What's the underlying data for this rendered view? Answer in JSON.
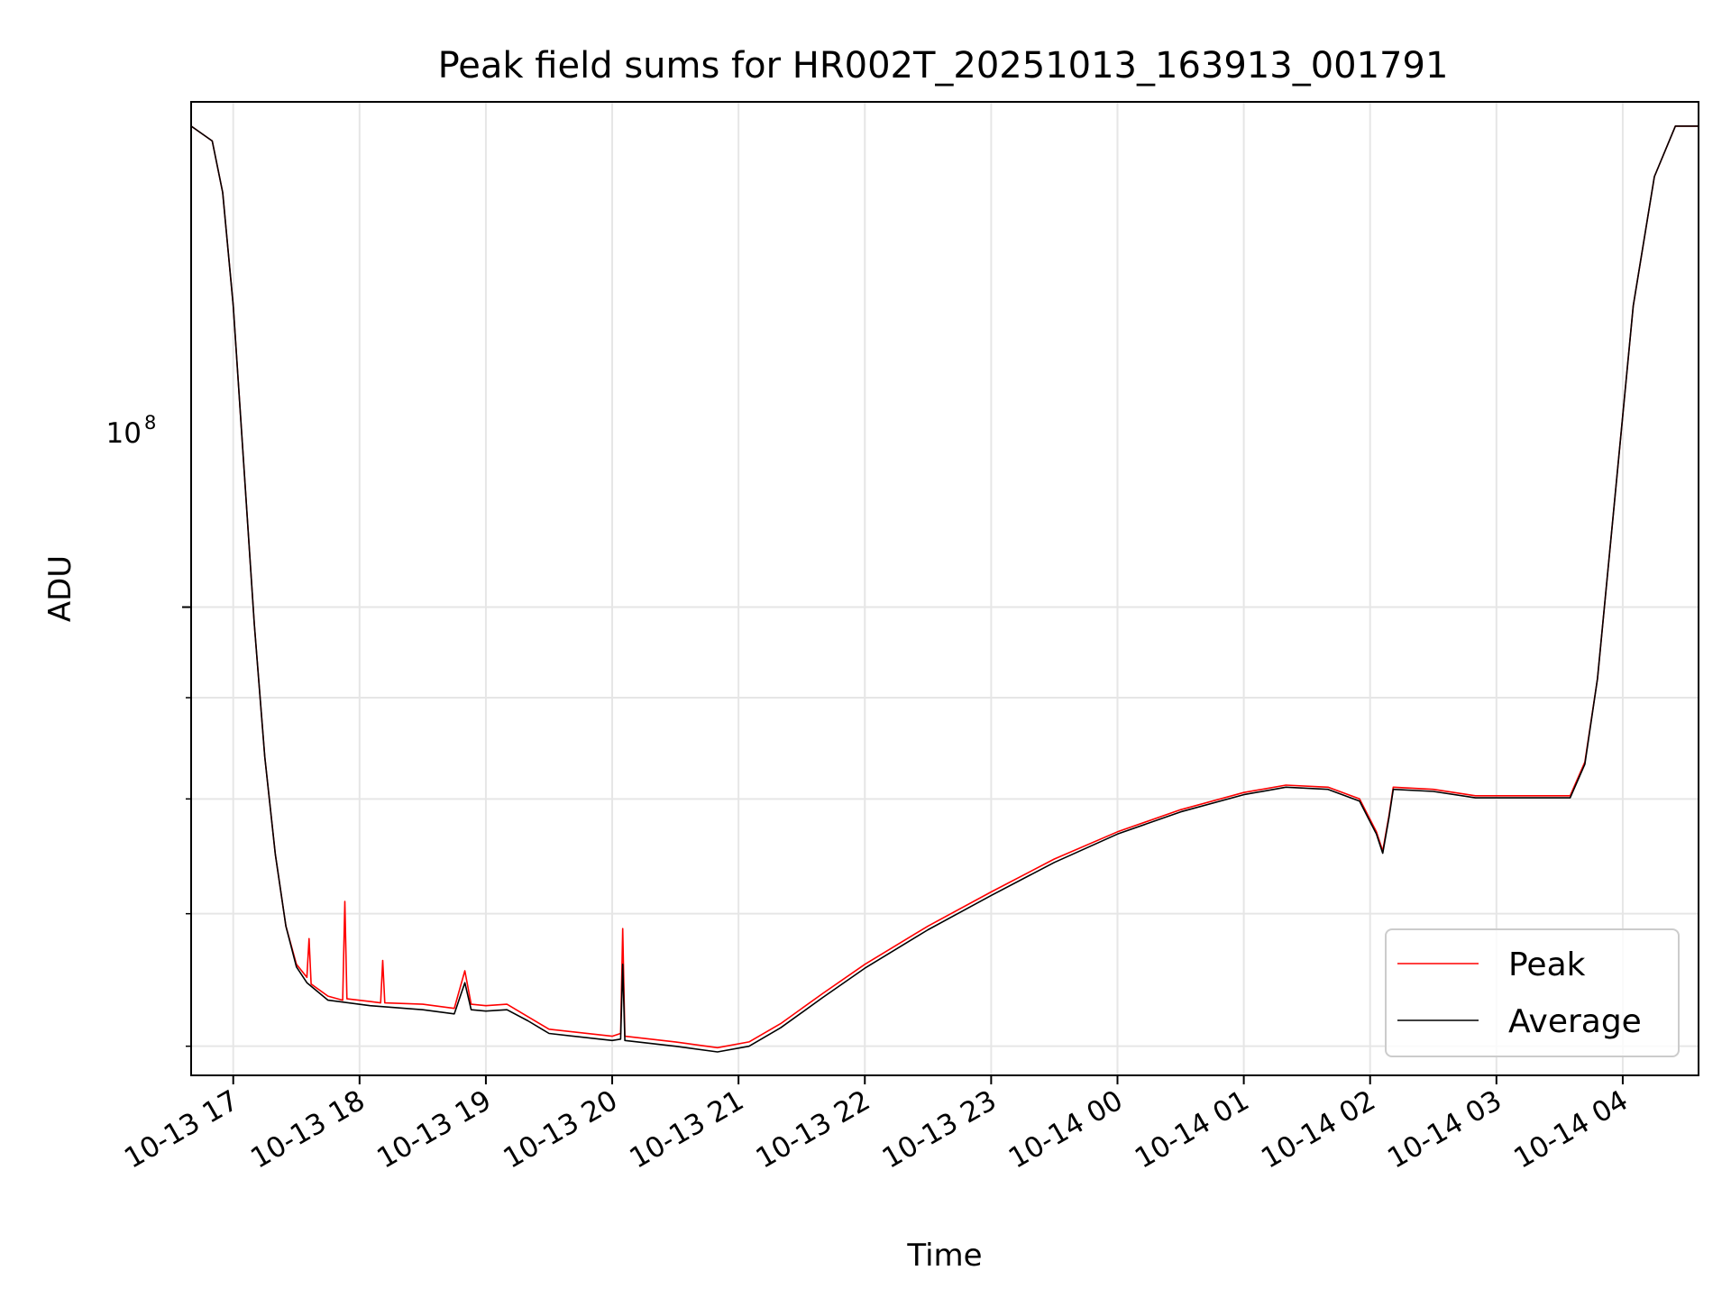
{
  "chart_data": {
    "type": "line",
    "title": "Peak field sums for HR002T_20251013_163913_001791",
    "xlabel": "Time",
    "ylabel": "ADU",
    "yscale": "log",
    "grid": true,
    "legend": "lower-right",
    "x_tick_labels": [
      "10-13 17",
      "10-13 18",
      "10-13 19",
      "10-13 20",
      "10-13 21",
      "10-13 22",
      "10-13 23",
      "10-14 00",
      "10-14 01",
      "10-14 02",
      "10-14 03",
      "10-14 04"
    ],
    "y_tick_label": {
      "base": "10",
      "exponent": "8"
    },
    "xlim": [
      "2025-10-13 16:40",
      "2025-10-14 04:36"
    ],
    "ylim": [
      58000000,
      180000000
    ],
    "series": [
      {
        "name": "Peak",
        "color": "#ff0000",
        "points": [
          [
            "2025-10-13 16:40",
            175000000
          ],
          [
            "2025-10-13 16:50",
            172000000
          ],
          [
            "2025-10-13 16:55",
            162000000
          ],
          [
            "2025-10-13 17:00",
            142000000
          ],
          [
            "2025-10-13 17:05",
            118000000
          ],
          [
            "2025-10-13 17:10",
            98000000
          ],
          [
            "2025-10-13 17:15",
            84000000
          ],
          [
            "2025-10-13 17:20",
            75000000
          ],
          [
            "2025-10-13 17:25",
            69000000
          ],
          [
            "2025-10-13 17:30",
            66000000
          ],
          [
            "2025-10-13 17:35",
            65000000
          ],
          [
            "2025-10-13 17:36",
            68000000
          ],
          [
            "2025-10-13 17:37",
            64500000
          ],
          [
            "2025-10-13 17:45",
            63600000
          ],
          [
            "2025-10-13 17:52",
            63300000
          ],
          [
            "2025-10-13 17:53",
            71000000
          ],
          [
            "2025-10-13 17:54",
            63400000
          ],
          [
            "2025-10-13 18:05",
            63200000
          ],
          [
            "2025-10-13 18:10",
            63100000
          ],
          [
            "2025-10-13 18:11",
            66300000
          ],
          [
            "2025-10-13 18:12",
            63100000
          ],
          [
            "2025-10-13 18:30",
            63000000
          ],
          [
            "2025-10-13 18:45",
            62700000
          ],
          [
            "2025-10-13 18:50",
            65500000
          ],
          [
            "2025-10-13 18:53",
            63000000
          ],
          [
            "2025-10-13 19:00",
            62900000
          ],
          [
            "2025-10-13 19:10",
            63000000
          ],
          [
            "2025-10-13 19:20",
            62100000
          ],
          [
            "2025-10-13 19:30",
            61200000
          ],
          [
            "2025-10-13 20:00",
            60700000
          ],
          [
            "2025-10-13 20:04",
            60900000
          ],
          [
            "2025-10-13 20:05",
            68800000
          ],
          [
            "2025-10-13 20:06",
            60700000
          ],
          [
            "2025-10-13 20:30",
            60300000
          ],
          [
            "2025-10-13 20:50",
            59900000
          ],
          [
            "2025-10-13 21:05",
            60300000
          ],
          [
            "2025-10-13 21:20",
            61600000
          ],
          [
            "2025-10-13 21:40",
            63800000
          ],
          [
            "2025-10-13 22:00",
            66000000
          ],
          [
            "2025-10-13 22:30",
            69000000
          ],
          [
            "2025-10-13 23:00",
            71800000
          ],
          [
            "2025-10-13 23:30",
            74600000
          ],
          [
            "2025-10-14 00:00",
            77000000
          ],
          [
            "2025-10-14 00:30",
            79000000
          ],
          [
            "2025-10-14 01:00",
            80600000
          ],
          [
            "2025-10-14 01:20",
            81300000
          ],
          [
            "2025-10-14 01:40",
            81100000
          ],
          [
            "2025-10-14 01:55",
            80000000
          ],
          [
            "2025-10-14 02:03",
            77000000
          ],
          [
            "2025-10-14 02:06",
            75300000
          ],
          [
            "2025-10-14 02:09",
            78500000
          ],
          [
            "2025-10-14 02:11",
            81100000
          ],
          [
            "2025-10-14 02:30",
            80900000
          ],
          [
            "2025-10-14 02:50",
            80300000
          ],
          [
            "2025-10-14 03:10",
            80300000
          ],
          [
            "2025-10-14 03:35",
            80300000
          ],
          [
            "2025-10-14 03:42",
            83500000
          ],
          [
            "2025-10-14 03:48",
            92000000
          ],
          [
            "2025-10-14 03:55",
            110000000
          ],
          [
            "2025-10-14 04:05",
            142000000
          ],
          [
            "2025-10-14 04:15",
            165000000
          ],
          [
            "2025-10-14 04:25",
            175000000
          ],
          [
            "2025-10-14 04:36",
            175000000
          ]
        ]
      },
      {
        "name": "Average",
        "color": "#000000",
        "points": [
          [
            "2025-10-13 16:40",
            175000000
          ],
          [
            "2025-10-13 16:50",
            172000000
          ],
          [
            "2025-10-13 16:55",
            162000000
          ],
          [
            "2025-10-13 17:00",
            142000000
          ],
          [
            "2025-10-13 17:05",
            118000000
          ],
          [
            "2025-10-13 17:10",
            98000000
          ],
          [
            "2025-10-13 17:15",
            84000000
          ],
          [
            "2025-10-13 17:20",
            75000000
          ],
          [
            "2025-10-13 17:25",
            69000000
          ],
          [
            "2025-10-13 17:30",
            65800000
          ],
          [
            "2025-10-13 17:35",
            64600000
          ],
          [
            "2025-10-13 17:45",
            63300000
          ],
          [
            "2025-10-13 18:05",
            62900000
          ],
          [
            "2025-10-13 18:30",
            62600000
          ],
          [
            "2025-10-13 18:45",
            62300000
          ],
          [
            "2025-10-13 18:50",
            64600000
          ],
          [
            "2025-10-13 18:53",
            62600000
          ],
          [
            "2025-10-13 19:00",
            62500000
          ],
          [
            "2025-10-13 19:10",
            62600000
          ],
          [
            "2025-10-13 19:20",
            61800000
          ],
          [
            "2025-10-13 19:30",
            60900000
          ],
          [
            "2025-10-13 20:00",
            60400000
          ],
          [
            "2025-10-13 20:04",
            60500000
          ],
          [
            "2025-10-13 20:05",
            66000000
          ],
          [
            "2025-10-13 20:06",
            60400000
          ],
          [
            "2025-10-13 20:30",
            60000000
          ],
          [
            "2025-10-13 20:50",
            59600000
          ],
          [
            "2025-10-13 21:05",
            60000000
          ],
          [
            "2025-10-13 21:20",
            61300000
          ],
          [
            "2025-10-13 21:40",
            63500000
          ],
          [
            "2025-10-13 22:00",
            65700000
          ],
          [
            "2025-10-13 22:30",
            68700000
          ],
          [
            "2025-10-13 23:00",
            71500000
          ],
          [
            "2025-10-13 23:30",
            74300000
          ],
          [
            "2025-10-14 00:00",
            76800000
          ],
          [
            "2025-10-14 00:30",
            78800000
          ],
          [
            "2025-10-14 01:00",
            80400000
          ],
          [
            "2025-10-14 01:20",
            81100000
          ],
          [
            "2025-10-14 01:40",
            80900000
          ],
          [
            "2025-10-14 01:55",
            79800000
          ],
          [
            "2025-10-14 02:03",
            76800000
          ],
          [
            "2025-10-14 02:06",
            75100000
          ],
          [
            "2025-10-14 02:09",
            78300000
          ],
          [
            "2025-10-14 02:11",
            80900000
          ],
          [
            "2025-10-14 02:30",
            80700000
          ],
          [
            "2025-10-14 02:50",
            80100000
          ],
          [
            "2025-10-14 03:10",
            80100000
          ],
          [
            "2025-10-14 03:35",
            80100000
          ],
          [
            "2025-10-14 03:42",
            83300000
          ],
          [
            "2025-10-14 03:48",
            92000000
          ],
          [
            "2025-10-14 03:55",
            110000000
          ],
          [
            "2025-10-14 04:05",
            142000000
          ],
          [
            "2025-10-14 04:15",
            165000000
          ],
          [
            "2025-10-14 04:25",
            175000000
          ],
          [
            "2025-10-14 04:36",
            175000000
          ]
        ]
      }
    ]
  }
}
